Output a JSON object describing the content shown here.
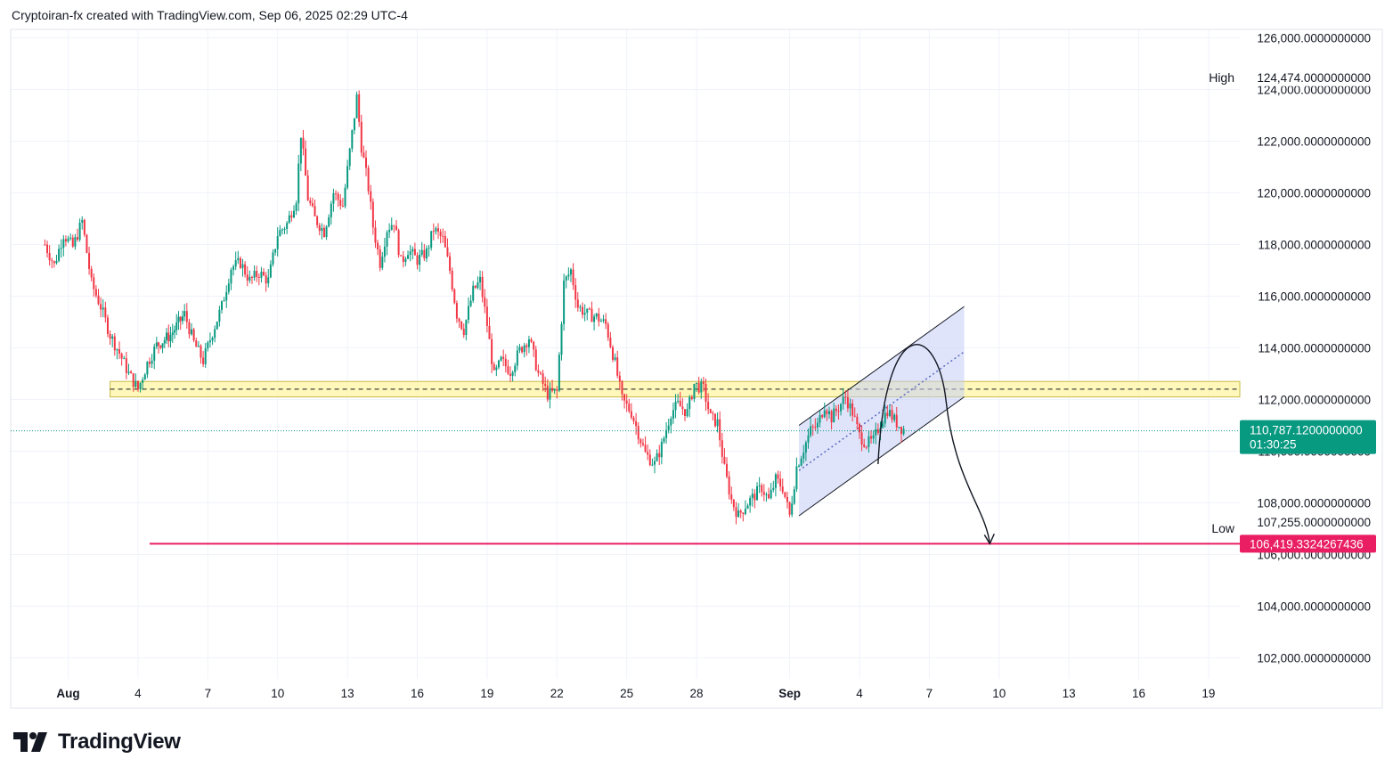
{
  "header": {
    "text": "Cryptoiran-fx created with TradingView.com, Sep 06, 2025 02:29 UTC-4"
  },
  "brand": {
    "name": "TradingView",
    "icon": "tradingview-logo-icon"
  },
  "colors": {
    "up": "#089981",
    "down": "#f23645",
    "support_zone": "#fff59d",
    "channel": "#c5cdf6",
    "target_line": "#e91e63",
    "current_tag": "#089981"
  },
  "chart_data": {
    "type": "candlestick",
    "symbol_interval": "hourly",
    "ylim": [
      101500,
      126500
    ],
    "y_ticks": [
      {
        "value": 102000,
        "label": "102,000.0000000000"
      },
      {
        "value": 104000,
        "label": "104,000.0000000000"
      },
      {
        "value": 106000,
        "label": "106,000.0000000000"
      },
      {
        "value": 108000,
        "label": "108,000.0000000000"
      },
      {
        "value": 110000,
        "label": "110,000.0000000000"
      },
      {
        "value": 112000,
        "label": "112,000.0000000000"
      },
      {
        "value": 114000,
        "label": "114,000.0000000000"
      },
      {
        "value": 116000,
        "label": "116,000.0000000000"
      },
      {
        "value": 118000,
        "label": "118,000.0000000000"
      },
      {
        "value": 120000,
        "label": "120,000.0000000000"
      },
      {
        "value": 122000,
        "label": "122,000.0000000000"
      },
      {
        "value": 124000,
        "label": "124,000.0000000000"
      },
      {
        "value": 126000,
        "label": "126,000.0000000000"
      }
    ],
    "x_ticks": [
      {
        "day": 1,
        "label": "Aug",
        "bold": true
      },
      {
        "day": 4,
        "label": "4"
      },
      {
        "day": 7,
        "label": "7"
      },
      {
        "day": 10,
        "label": "10"
      },
      {
        "day": 13,
        "label": "13"
      },
      {
        "day": 16,
        "label": "16"
      },
      {
        "day": 19,
        "label": "19"
      },
      {
        "day": 22,
        "label": "22"
      },
      {
        "day": 25,
        "label": "25"
      },
      {
        "day": 28,
        "label": "28"
      },
      {
        "day": 32,
        "label": "Sep",
        "bold": true
      },
      {
        "day": 35,
        "label": "4"
      },
      {
        "day": 38,
        "label": "7"
      },
      {
        "day": 41,
        "label": "10"
      },
      {
        "day": 44,
        "label": "13"
      },
      {
        "day": 47,
        "label": "16"
      },
      {
        "day": 50,
        "label": "19"
      }
    ],
    "high": {
      "label": "High",
      "value": 124474,
      "text": "124,474.0000000000"
    },
    "low": {
      "label": "Low",
      "value": 107255,
      "text": "107,255.0000000000"
    },
    "current_price": {
      "value": 110787.12,
      "text": "110,787.1200000000",
      "countdown": "01:30:25"
    },
    "target_price": {
      "value": 106419.3324267436,
      "text": "106,419.3324267436"
    },
    "support_zone": {
      "from_day": 2.8,
      "to_day": 52.5,
      "low": 112100,
      "high": 112700,
      "mid": 112400
    },
    "channel": {
      "x1": 32.4,
      "y1": 107500,
      "x2": 39.5,
      "y2": 112100,
      "width": 3500
    },
    "projection": {
      "start": [
        35.8,
        109500
      ],
      "peak": [
        37.0,
        114000
      ],
      "end": [
        40.6,
        106419.33
      ]
    },
    "price_path": [
      [
        0.0,
        118000
      ],
      [
        0.4,
        117200
      ],
      [
        0.8,
        118400
      ],
      [
        1.2,
        117900
      ],
      [
        1.6,
        118900
      ],
      [
        2.0,
        116500
      ],
      [
        2.4,
        115600
      ],
      [
        2.8,
        114500
      ],
      [
        3.2,
        113800
      ],
      [
        3.6,
        113000
      ],
      [
        4.0,
        112400
      ],
      [
        4.4,
        113400
      ],
      [
        4.8,
        114100
      ],
      [
        5.4,
        114500
      ],
      [
        6.0,
        115300
      ],
      [
        6.4,
        114200
      ],
      [
        6.8,
        113500
      ],
      [
        7.2,
        114600
      ],
      [
        7.6,
        115600
      ],
      [
        8.0,
        117100
      ],
      [
        8.4,
        117300
      ],
      [
        8.8,
        116600
      ],
      [
        9.2,
        116900
      ],
      [
        9.6,
        116600
      ],
      [
        10.0,
        118400
      ],
      [
        10.4,
        118800
      ],
      [
        10.8,
        119800
      ],
      [
        11.0,
        122300
      ],
      [
        11.3,
        119800
      ],
      [
        11.6,
        119000
      ],
      [
        12.0,
        118500
      ],
      [
        12.4,
        120000
      ],
      [
        12.8,
        119500
      ],
      [
        13.1,
        121600
      ],
      [
        13.4,
        123700
      ],
      [
        13.6,
        121800
      ],
      [
        13.9,
        120200
      ],
      [
        14.1,
        118700
      ],
      [
        14.4,
        117300
      ],
      [
        14.7,
        118600
      ],
      [
        15.0,
        118900
      ],
      [
        15.3,
        117300
      ],
      [
        15.6,
        117800
      ],
      [
        16.0,
        117400
      ],
      [
        16.4,
        117700
      ],
      [
        16.7,
        118600
      ],
      [
        17.1,
        118200
      ],
      [
        17.4,
        117000
      ],
      [
        17.7,
        115300
      ],
      [
        18.0,
        114700
      ],
      [
        18.4,
        116200
      ],
      [
        18.7,
        116600
      ],
      [
        19.0,
        114900
      ],
      [
        19.3,
        112900
      ],
      [
        19.6,
        113500
      ],
      [
        20.0,
        113100
      ],
      [
        20.4,
        113900
      ],
      [
        20.8,
        114400
      ],
      [
        21.2,
        113000
      ],
      [
        21.6,
        112200
      ],
      [
        22.0,
        112300
      ],
      [
        22.3,
        116500
      ],
      [
        22.6,
        117000
      ],
      [
        22.9,
        115600
      ],
      [
        23.3,
        115300
      ],
      [
        23.7,
        115200
      ],
      [
        24.1,
        114900
      ],
      [
        24.5,
        113400
      ],
      [
        24.8,
        112000
      ],
      [
        25.2,
        111500
      ],
      [
        25.5,
        110700
      ],
      [
        25.8,
        109900
      ],
      [
        26.2,
        109500
      ],
      [
        26.5,
        110200
      ],
      [
        26.9,
        111500
      ],
      [
        27.2,
        111800
      ],
      [
        27.6,
        111500
      ],
      [
        27.9,
        112600
      ],
      [
        28.3,
        112400
      ],
      [
        28.6,
        111300
      ],
      [
        28.9,
        111100
      ],
      [
        29.2,
        109300
      ],
      [
        29.5,
        108100
      ],
      [
        29.8,
        107500
      ],
      [
        30.1,
        107900
      ],
      [
        30.5,
        108300
      ],
      [
        30.8,
        108600
      ],
      [
        31.1,
        108100
      ],
      [
        31.4,
        108900
      ],
      [
        31.7,
        108600
      ],
      [
        32.0,
        107500
      ],
      [
        32.3,
        109400
      ],
      [
        32.6,
        110100
      ],
      [
        32.9,
        110800
      ],
      [
        33.2,
        111000
      ],
      [
        33.5,
        111800
      ],
      [
        33.8,
        111300
      ],
      [
        34.1,
        111700
      ],
      [
        34.4,
        112100
      ],
      [
        34.7,
        111500
      ],
      [
        35.0,
        110600
      ],
      [
        35.3,
        110300
      ],
      [
        35.6,
        110400
      ],
      [
        35.9,
        111100
      ],
      [
        36.2,
        111600
      ],
      [
        36.5,
        111200
      ],
      [
        36.8,
        110900
      ],
      [
        37.0,
        110800
      ]
    ]
  }
}
